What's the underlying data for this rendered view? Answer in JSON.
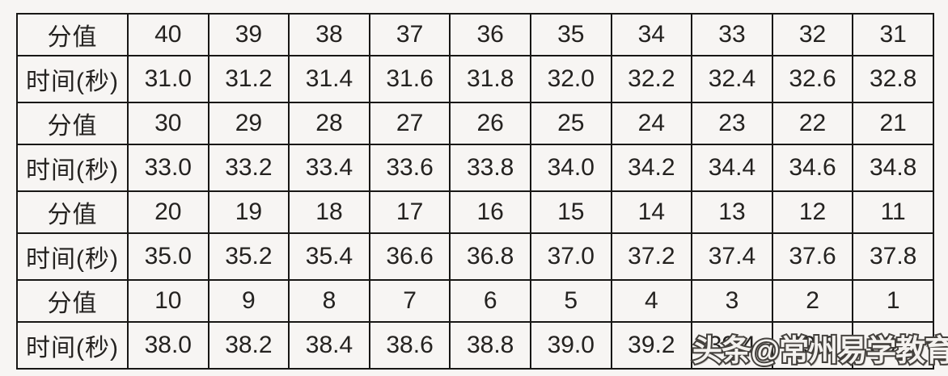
{
  "page": {
    "background_color": "#f7f5f3",
    "border_color": "#181715",
    "text_color": "#242220"
  },
  "table": {
    "description_labels": {
      "score_row_label": "分值",
      "time_row_label": "时间(秒)"
    },
    "rows": [
      {
        "kind": "score",
        "header": "分值",
        "cells": [
          "40",
          "39",
          "38",
          "37",
          "36",
          "35",
          "34",
          "33",
          "32",
          "31"
        ]
      },
      {
        "kind": "time",
        "header": "时间(秒)",
        "cells": [
          "31.0",
          "31.2",
          "31.4",
          "31.6",
          "31.8",
          "32.0",
          "32.2",
          "32.4",
          "32.6",
          "32.8"
        ]
      },
      {
        "kind": "score",
        "header": "分值",
        "cells": [
          "30",
          "29",
          "28",
          "27",
          "26",
          "25",
          "24",
          "23",
          "22",
          "21"
        ]
      },
      {
        "kind": "time",
        "header": "时间(秒)",
        "cells": [
          "33.0",
          "33.2",
          "33.4",
          "33.6",
          "33.8",
          "34.0",
          "34.2",
          "34.4",
          "34.6",
          "34.8"
        ]
      },
      {
        "kind": "score",
        "header": "分值",
        "cells": [
          "20",
          "19",
          "18",
          "17",
          "16",
          "15",
          "14",
          "13",
          "12",
          "11"
        ]
      },
      {
        "kind": "time",
        "header": "时间(秒)",
        "cells": [
          "35.0",
          "35.2",
          "35.4",
          "36.6",
          "36.8",
          "37.0",
          "37.2",
          "37.4",
          "37.6",
          "37.8"
        ]
      },
      {
        "kind": "score",
        "header": "分值",
        "cells": [
          "10",
          "9",
          "8",
          "7",
          "6",
          "5",
          "4",
          "3",
          "2",
          "1"
        ]
      },
      {
        "kind": "time",
        "header": "时间(秒)",
        "cells": [
          "38.0",
          "38.2",
          "38.4",
          "38.6",
          "38.8",
          "39.0",
          "39.2",
          "39.4",
          "39.6",
          "39.8"
        ]
      }
    ]
  },
  "watermark": {
    "text": "头条@常州易学教育",
    "fill_color": "#f4f2ef",
    "outline_color": "#45423e"
  }
}
